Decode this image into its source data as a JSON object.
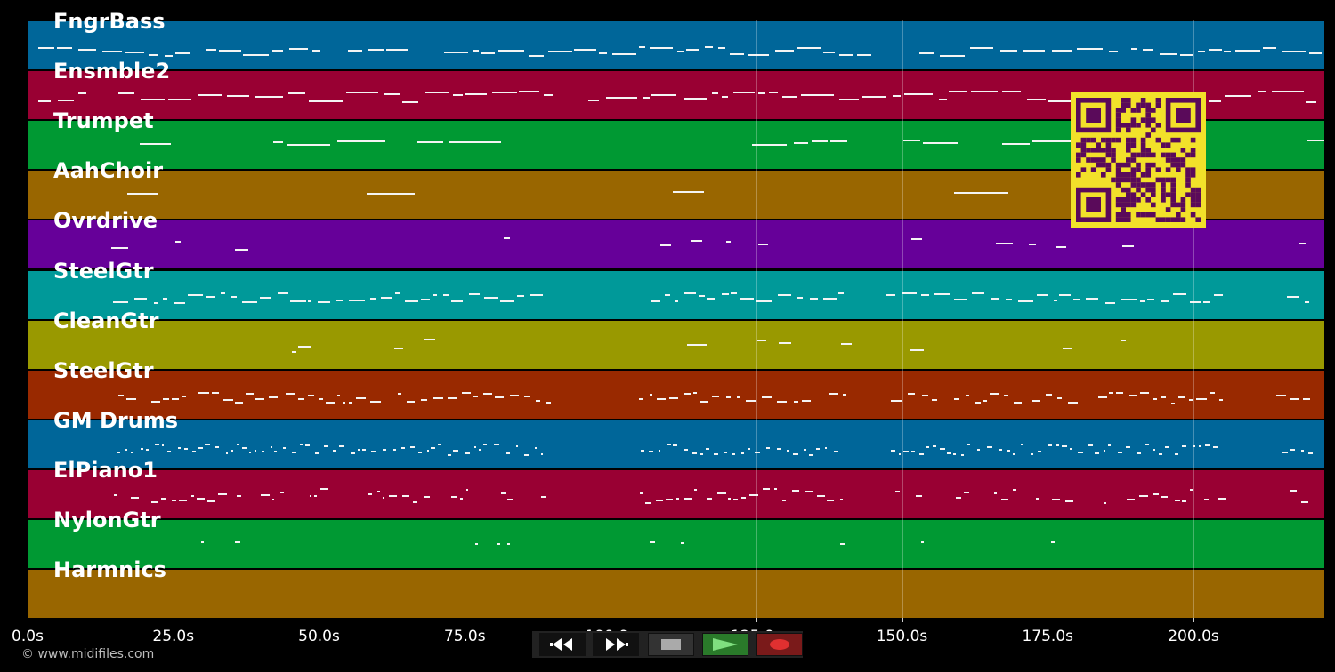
{
  "tracks": [
    {
      "name": "FngrBass",
      "color": "#006699"
    },
    {
      "name": "Ensmble2",
      "color": "#990033"
    },
    {
      "name": "Trumpet",
      "color": "#009933"
    },
    {
      "name": "AahChoir",
      "color": "#996600"
    },
    {
      "name": "Ovrdrive",
      "color": "#660099"
    },
    {
      "name": "SteelGtr",
      "color": "#009999"
    },
    {
      "name": "CleanGtr",
      "color": "#999900"
    },
    {
      "name": "SteelGtr",
      "color": "#992900"
    },
    {
      "name": "GM Drums",
      "color": "#006699"
    },
    {
      "name": "ElPiano1",
      "color": "#990033"
    },
    {
      "name": "NylonGtr",
      "color": "#009933"
    },
    {
      "name": "Harmnics",
      "color": "#996600"
    }
  ],
  "timeline": {
    "ticks": [
      "0.0s",
      "25.0s",
      "50.0s",
      "75.0s",
      "100.0s",
      "125.0s",
      "150.0s",
      "175.0s",
      "200.0s"
    ]
  },
  "copyright": "© www.midifiles.com",
  "transport": {
    "rewind": "rewind-icon",
    "fast_forward": "fast-forward-icon",
    "stop": "stop-icon",
    "play": "play-icon",
    "record": "record-icon",
    "colors": {
      "play": "#2a7a2a",
      "record": "#7a1a1a",
      "stop": "#333333"
    }
  },
  "qr_code": {
    "foreground": "#5a0a5a",
    "background": "#f2e12a"
  }
}
